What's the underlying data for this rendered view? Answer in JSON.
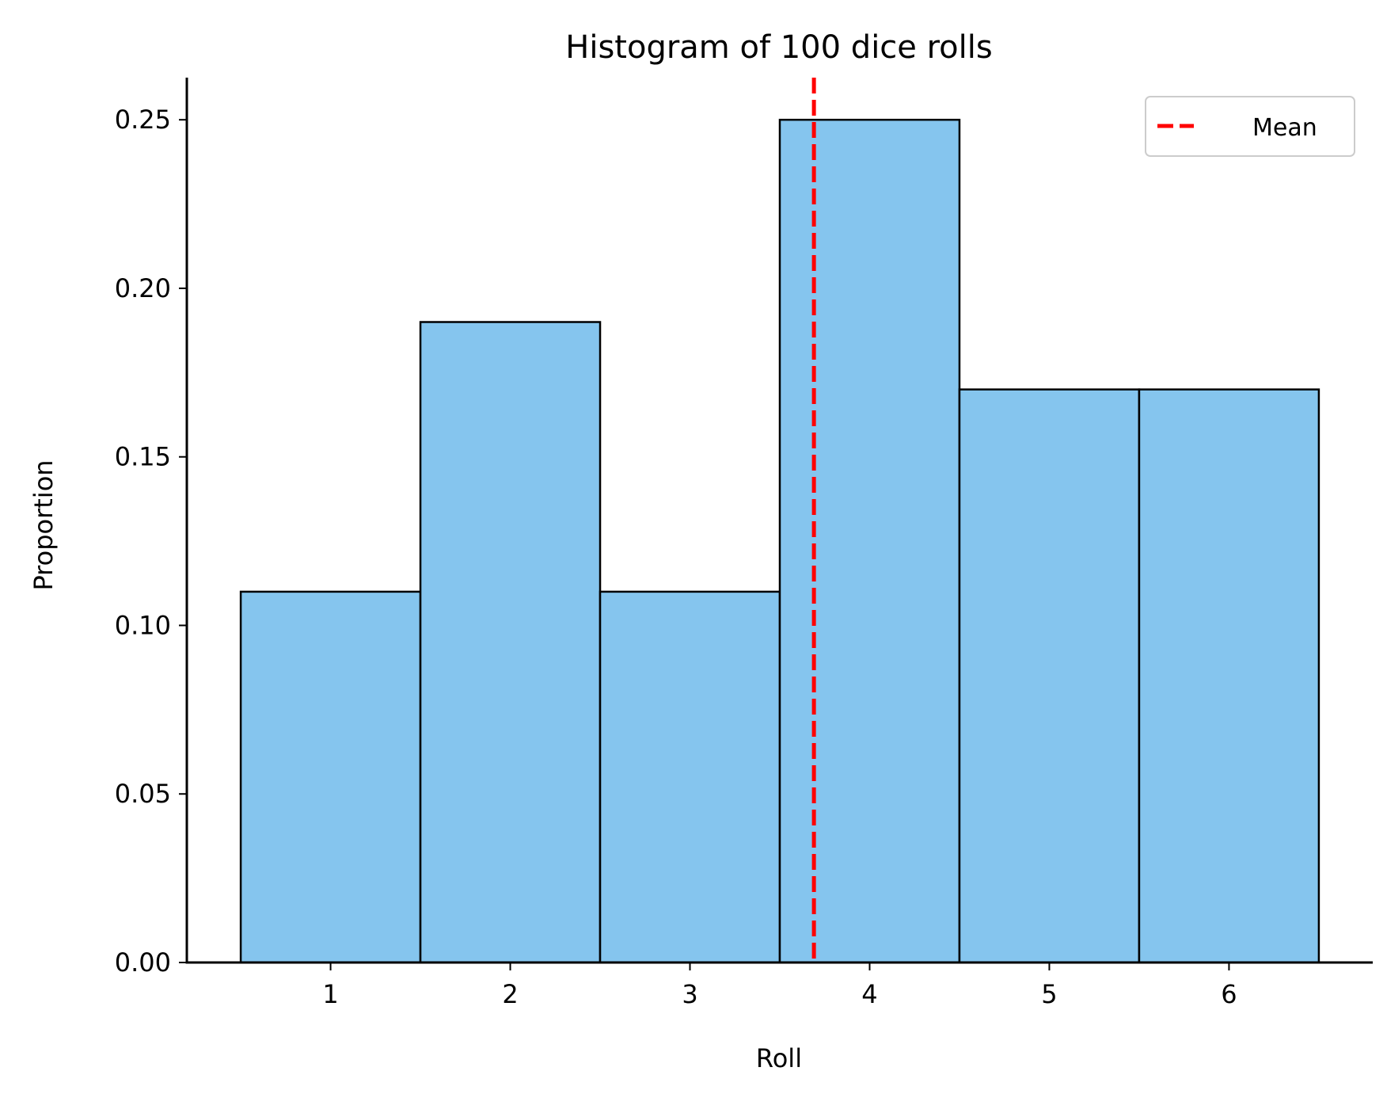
{
  "chart_data": {
    "type": "bar",
    "title": "Histogram of 100 dice rolls",
    "xlabel": "Roll",
    "ylabel": "Proportion",
    "categories": [
      "1",
      "2",
      "3",
      "4",
      "5",
      "6"
    ],
    "x": [
      1,
      2,
      3,
      4,
      5,
      6
    ],
    "values": [
      0.11,
      0.19,
      0.11,
      0.25,
      0.17,
      0.17
    ],
    "bin_width": 1,
    "xlim": [
      0.2,
      6.8
    ],
    "ylim": [
      0,
      0.2625
    ],
    "yticks": [
      0.0,
      0.05,
      0.1,
      0.15,
      0.2,
      0.25
    ],
    "ytick_labels": [
      "0.00",
      "0.05",
      "0.10",
      "0.15",
      "0.20",
      "0.25"
    ],
    "mean": 3.69,
    "grid": false,
    "legend": {
      "position": "top-right",
      "entries": [
        {
          "label": "Mean",
          "style": "dashed",
          "color": "#ff0000"
        }
      ]
    },
    "colors": {
      "bar_fill": "#85c5ee",
      "bar_edge": "#000000",
      "mean_line": "#ff0000"
    }
  }
}
